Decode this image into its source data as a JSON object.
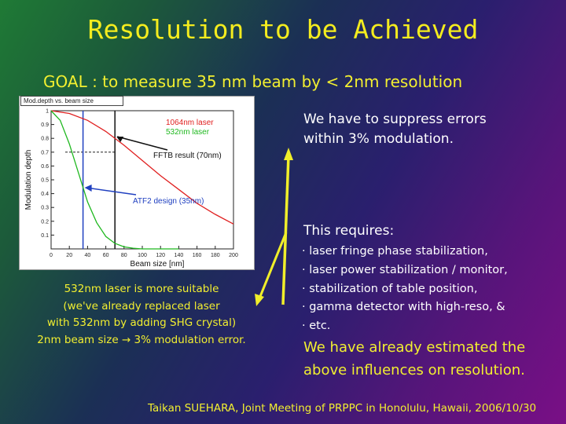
{
  "slide": {
    "title": "Resolution to be Achieved",
    "goal": "GOAL : to measure 35 nm beam by < 2nm resolution",
    "requirement_lines": [
      "We have to suppress errors",
      "within 3% modulation."
    ],
    "this_requires": "This requires:",
    "requirements": [
      "· laser fringe phase stabilization,",
      "· laser power stabilization / monitor,",
      "· stabilization of table position,",
      "· gamma detector with high-reso, &",
      "· etc."
    ],
    "estimated_lines": [
      "We have already estimated the",
      "above influences on resolution."
    ],
    "note_lines": [
      "532nm laser is more suitable",
      "(we've already replaced laser",
      "with 532nm by adding SHG crystal)",
      "2nm beam size → 3% modulation error."
    ],
    "footer": "Taikan  SUEHARA, Joint Meeting of PRPPC in Honolulu, Hawaii, 2006/10/30",
    "colors": {
      "title": "#f4ec1e",
      "text_yellow": "#f2ef30",
      "text_white": "#ffffff",
      "arrow_yellow": "#f0ee2a"
    }
  },
  "chart_data": {
    "type": "line",
    "panel_label": "Mod.depth vs. beam size",
    "xlabel": "Beam size [nm]",
    "ylabel": "Modulation depth",
    "xlim": [
      0,
      200
    ],
    "ylim": [
      0,
      1
    ],
    "xticks": [
      0,
      20,
      40,
      60,
      80,
      100,
      120,
      140,
      160,
      180,
      200
    ],
    "yticks": [
      0.1,
      0.2,
      0.3,
      0.4,
      0.5,
      0.6,
      0.7,
      0.8,
      0.9,
      1
    ],
    "series": [
      {
        "name": "1064nm laser",
        "color": "#e02020",
        "x": [
          0,
          20,
          40,
          60,
          80,
          100,
          120,
          140,
          160,
          180,
          200
        ],
        "y": [
          1.0,
          0.98,
          0.93,
          0.85,
          0.75,
          0.64,
          0.53,
          0.43,
          0.33,
          0.25,
          0.18
        ]
      },
      {
        "name": "532nm laser",
        "color": "#1fb81f",
        "x": [
          0,
          10,
          20,
          30,
          40,
          50,
          60,
          70,
          80,
          90,
          100,
          120,
          140
        ],
        "y": [
          1.0,
          0.93,
          0.76,
          0.55,
          0.34,
          0.19,
          0.09,
          0.04,
          0.015,
          0.005,
          0.0,
          0.0,
          0.0
        ]
      }
    ],
    "annotations": [
      {
        "text": "FFTB result (70nm)",
        "x": 70
      },
      {
        "text": "ATF2 design (35nm)",
        "x": 35
      }
    ],
    "vertical_lines": [
      {
        "x": 70,
        "color": "#111111"
      },
      {
        "x": 35,
        "color": "#2040c0"
      }
    ],
    "reference_level": 0.7
  }
}
